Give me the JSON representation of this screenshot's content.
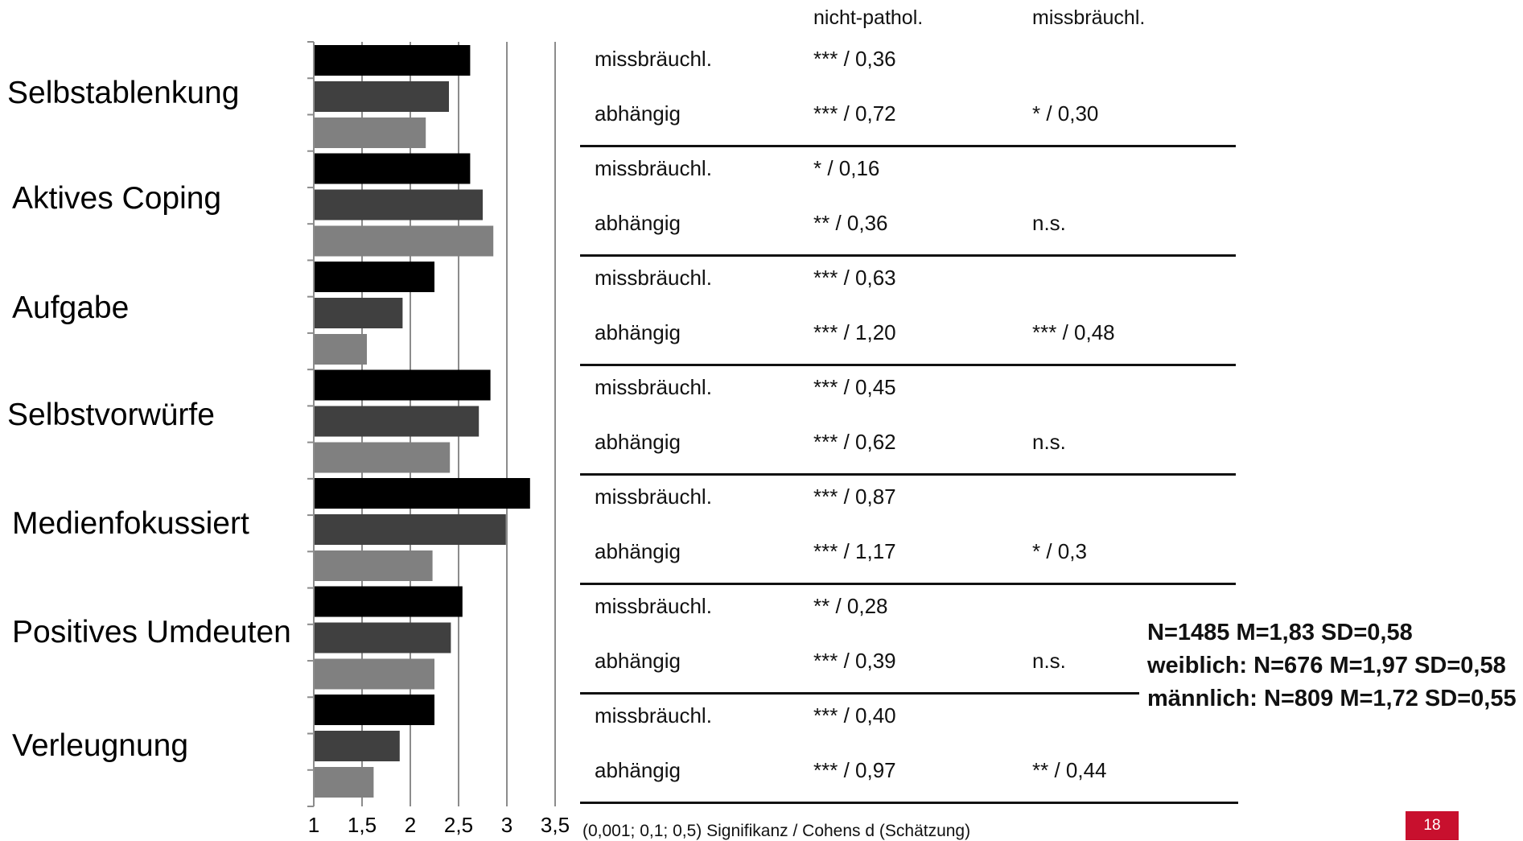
{
  "chart_data": {
    "type": "bar",
    "orientation": "horizontal",
    "categories": [
      "Selbstablenkung",
      "Aktives Coping",
      "Aufgabe",
      "Selbstvorwürfe",
      "Medienfokussiert",
      "Positives Umdeuten",
      "Verleugnung"
    ],
    "series": [
      {
        "color": "#000000",
        "values": [
          2.62,
          2.62,
          2.25,
          2.83,
          3.24,
          2.54,
          2.25
        ]
      },
      {
        "color": "#404040",
        "values": [
          2.4,
          2.75,
          1.92,
          2.71,
          2.99,
          2.42,
          1.89
        ]
      },
      {
        "color": "#808080",
        "values": [
          2.16,
          2.86,
          1.55,
          2.41,
          2.23,
          2.25,
          1.62
        ]
      }
    ],
    "xlim": [
      1,
      3.5
    ],
    "xticks": [
      "1",
      "1,5",
      "2",
      "2,5",
      "3",
      "3,5"
    ],
    "grid": true
  },
  "table": {
    "headers": [
      "nicht-pathol.",
      "missbräuchl."
    ],
    "groups": [
      {
        "rows": [
          {
            "label": "missbräuchl.",
            "c1": "*** / 0,36",
            "c2": ""
          },
          {
            "label": "abhängig",
            "c1": "*** / 0,72",
            "c2": "* / 0,30"
          }
        ]
      },
      {
        "rows": [
          {
            "label": "missbräuchl.",
            "c1": "* / 0,16",
            "c2": ""
          },
          {
            "label": "abhängig",
            "c1": "** / 0,36",
            "c2": "n.s."
          }
        ]
      },
      {
        "rows": [
          {
            "label": "missbräuchl.",
            "c1": "*** / 0,63",
            "c2": ""
          },
          {
            "label": "abhängig",
            "c1": "*** / 1,20",
            "c2": "*** / 0,48"
          }
        ]
      },
      {
        "rows": [
          {
            "label": "missbräuchl.",
            "c1": "*** / 0,45",
            "c2": ""
          },
          {
            "label": "abhängig",
            "c1": "*** / 0,62",
            "c2": "n.s."
          }
        ]
      },
      {
        "rows": [
          {
            "label": "missbräuchl.",
            "c1": "*** / 0,87",
            "c2": ""
          },
          {
            "label": "abhängig",
            "c1": "*** / 1,17",
            "c2": "* / 0,3"
          }
        ]
      },
      {
        "rows": [
          {
            "label": "missbräuchl.",
            "c1": "** / 0,28",
            "c2": ""
          },
          {
            "label": "abhängig",
            "c1": "*** / 0,39",
            "c2": "n.s."
          }
        ]
      },
      {
        "rows": [
          {
            "label": "missbräuchl.",
            "c1": "*** / 0,40",
            "c2": ""
          },
          {
            "label": "abhängig",
            "c1": "*** / 0,97",
            "c2": "** / 0,44"
          }
        ]
      }
    ]
  },
  "stats": [
    "N=1485 M=1,83 SD=0,58",
    "weiblich: N=676 M=1,97 SD=0,58",
    "männlich: N=809 M=1,72 SD=0,55"
  ],
  "footnote": "(0,001; 0,1; 0,5) Signifikanz / Cohens d (Schätzung)",
  "page_number": "18"
}
